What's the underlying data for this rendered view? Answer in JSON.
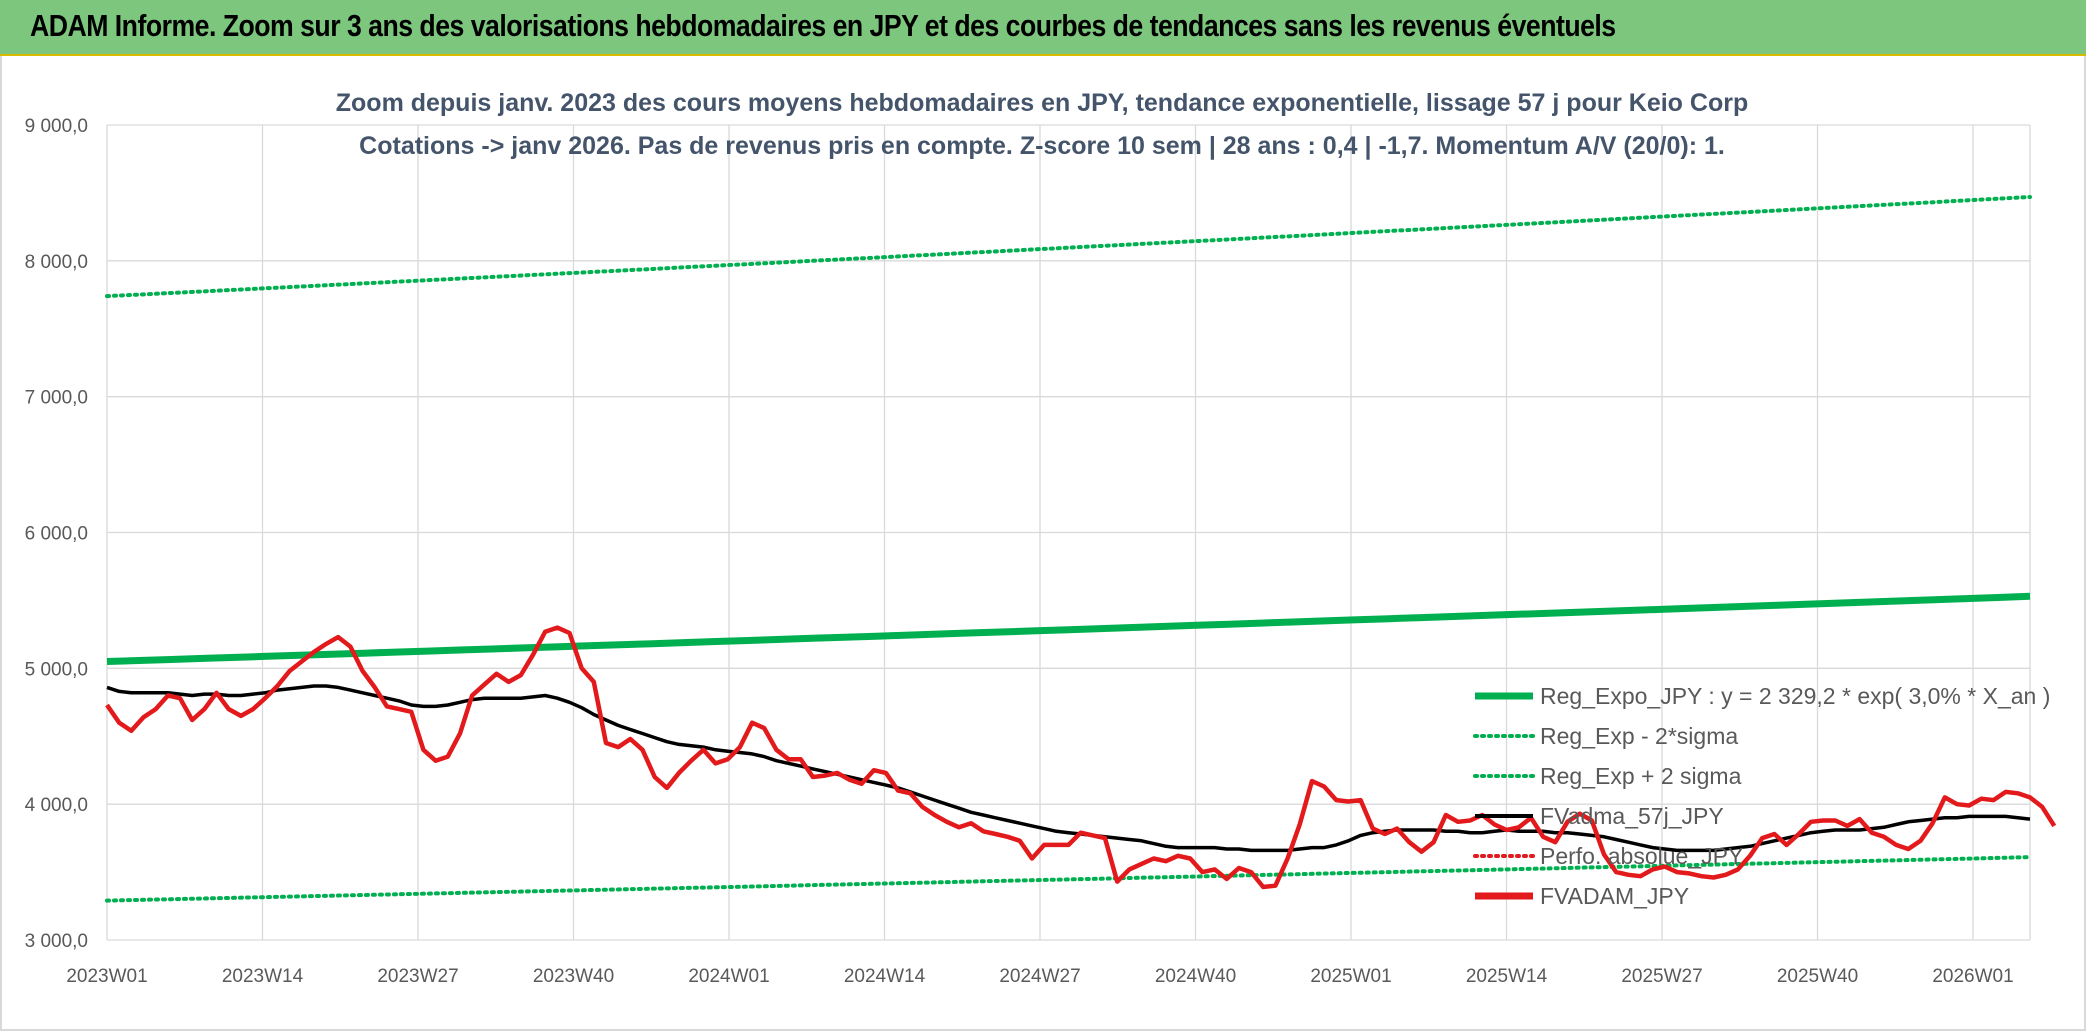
{
  "banner": {
    "title": "ADAM Informe. Zoom sur 3 ans des valorisations hebdomadaires en JPY et des courbes de tendances sans les revenus éventuels"
  },
  "chart_data": {
    "type": "line",
    "title_line1": "Zoom depuis janv. 2023 des cours moyens hebdomadaires en JPY, tendance exponentielle, lissage 57 j pour Keio Corp",
    "title_line2": "Cotations -> janv 2026. Pas de revenus pris en compte. Z-score 10 sem | 28 ans : 0,4 | -1,7. Momentum A/V (20/0): 1.",
    "x_ticks": [
      "2023W01",
      "2023W14",
      "2023W27",
      "2023W40",
      "2024W01",
      "2024W14",
      "2024W27",
      "2024W40",
      "2025W01",
      "2025W14",
      "2025W27",
      "2025W40",
      "2026W01"
    ],
    "y_ticks": [
      "3 000,0",
      "4 000,0",
      "5 000,0",
      "6 000,0",
      "7 000,0",
      "8 000,0",
      "9 000,0"
    ],
    "ylim": [
      3000,
      9000
    ],
    "grid": true,
    "legend_position": "bottom-right",
    "colors": {
      "green": "#00b050",
      "black": "#000000",
      "red": "#e31a1c"
    },
    "legend": [
      {
        "label": "Reg_Expo_JPY : y = 2 329,2 * exp( 3,0% *  X_an )",
        "style": "thick-solid",
        "color": "#00b050"
      },
      {
        "label": "Reg_Exp - 2*sigma",
        "style": "dotted",
        "color": "#00b050"
      },
      {
        "label": "Reg_Exp + 2 sigma",
        "style": "dotted",
        "color": "#00b050"
      },
      {
        "label": "FVadma_57j_JPY",
        "style": "solid",
        "color": "#000000"
      },
      {
        "label": "Perfo. absolue_JPY",
        "style": "dotted",
        "color": "#e31a1c"
      },
      {
        "label": "FVADAM_JPY",
        "style": "thick-solid",
        "color": "#e31a1c"
      }
    ],
    "series": [
      {
        "name": "Reg_Expo_JPY : y = 2 329,2 * exp( 3,0% *  X_an )",
        "start": 5050,
        "end": 5530
      },
      {
        "name": "Reg_Exp - 2*sigma",
        "start": 3290,
        "end": 3610
      },
      {
        "name": "Reg_Exp + 2 sigma",
        "start": 7740,
        "end": 8470
      },
      {
        "name": "FVadma_57j_JPY",
        "values": [
          4860,
          4830,
          4820,
          4820,
          4820,
          4820,
          4810,
          4800,
          4810,
          4810,
          4800,
          4800,
          4810,
          4820,
          4840,
          4850,
          4860,
          4870,
          4870,
          4860,
          4840,
          4820,
          4800,
          4780,
          4760,
          4730,
          4720,
          4720,
          4730,
          4750,
          4770,
          4780,
          4780,
          4780,
          4780,
          4790,
          4800,
          4780,
          4750,
          4710,
          4660,
          4620,
          4580,
          4550,
          4520,
          4490,
          4460,
          4440,
          4430,
          4420,
          4400,
          4390,
          4380,
          4370,
          4350,
          4320,
          4300,
          4280,
          4260,
          4240,
          4220,
          4200,
          4180,
          4160,
          4140,
          4120,
          4090,
          4060,
          4030,
          4000,
          3970,
          3940,
          3920,
          3900,
          3880,
          3860,
          3840,
          3820,
          3800,
          3790,
          3780,
          3770,
          3760,
          3750,
          3740,
          3730,
          3710,
          3690,
          3680,
          3680,
          3680,
          3680,
          3670,
          3670,
          3660,
          3660,
          3660,
          3660,
          3670,
          3680,
          3680,
          3700,
          3730,
          3770,
          3790,
          3800,
          3810,
          3810,
          3810,
          3810,
          3800,
          3800,
          3790,
          3790,
          3800,
          3810,
          3800,
          3800,
          3800,
          3790,
          3790,
          3780,
          3770,
          3760,
          3740,
          3720,
          3700,
          3680,
          3670,
          3660,
          3660,
          3660,
          3660,
          3670,
          3680,
          3690,
          3710,
          3730,
          3750,
          3770,
          3790,
          3800,
          3810,
          3810,
          3810,
          3820,
          3830,
          3850,
          3870,
          3880,
          3890,
          3900,
          3900,
          3910,
          3910,
          3910,
          3910,
          3900,
          3890
        ]
      },
      {
        "name": "FVADAM_JPY",
        "values": [
          4730,
          4600,
          4540,
          4640,
          4700,
          4800,
          4780,
          4620,
          4700,
          4820,
          4700,
          4650,
          4700,
          4780,
          4870,
          4980,
          5050,
          5120,
          5180,
          5230,
          5160,
          4980,
          4860,
          4720,
          4700,
          4680,
          4400,
          4320,
          4350,
          4520,
          4800,
          4880,
          4960,
          4900,
          4950,
          5100,
          5270,
          5300,
          5260,
          5000,
          4900,
          4450,
          4420,
          4480,
          4400,
          4200,
          4120,
          4230,
          4320,
          4400,
          4300,
          4330,
          4420,
          4600,
          4560,
          4400,
          4330,
          4330,
          4200,
          4210,
          4230,
          4180,
          4150,
          4250,
          4230,
          4100,
          4080,
          3980,
          3920,
          3870,
          3830,
          3860,
          3800,
          3780,
          3760,
          3730,
          3600,
          3700,
          3700,
          3700,
          3790,
          3770,
          3750,
          3430,
          3520,
          3560,
          3600,
          3580,
          3620,
          3600,
          3500,
          3520,
          3450,
          3530,
          3500,
          3390,
          3400,
          3600,
          3850,
          4170,
          4130,
          4030,
          4020,
          4030,
          3820,
          3780,
          3820,
          3720,
          3650,
          3720,
          3920,
          3870,
          3880,
          3920,
          3850,
          3810,
          3830,
          3900,
          3760,
          3720,
          3870,
          3930,
          3880,
          3630,
          3500,
          3480,
          3470,
          3520,
          3540,
          3500,
          3490,
          3470,
          3460,
          3480,
          3520,
          3620,
          3750,
          3780,
          3700,
          3780,
          3870,
          3880,
          3880,
          3840,
          3890,
          3790,
          3760,
          3700,
          3670,
          3730,
          3860,
          4050,
          4000,
          3990,
          4040,
          4030,
          4090,
          4080,
          4050,
          3980,
          3840
        ]
      }
    ]
  }
}
